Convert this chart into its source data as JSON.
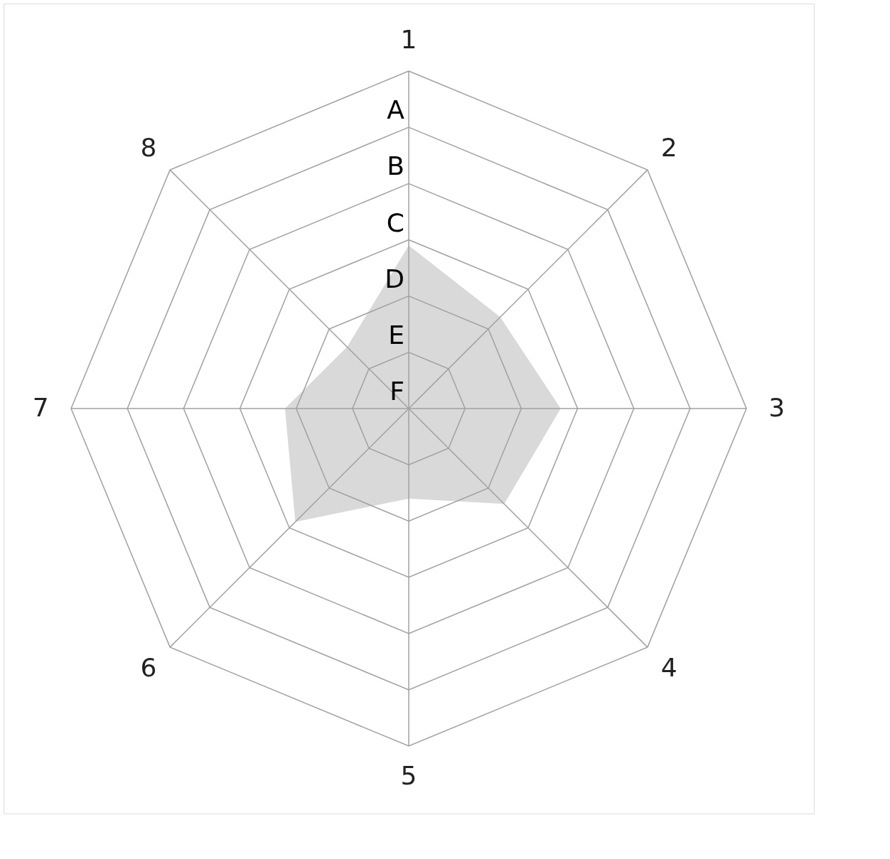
{
  "chart_data": {
    "type": "radar",
    "categories": [
      "1",
      "2",
      "3",
      "4",
      "5",
      "6",
      "7",
      "8"
    ],
    "series": [
      {
        "color": "#d9d9d9",
        "values": [
          2.9,
          2.3,
          2.7,
          2.4,
          1.6,
          2.85,
          2.2,
          1.55
        ]
      }
    ],
    "ylim": [
      0,
      6
    ],
    "yticks": [
      {
        "value": 0,
        "label": "F"
      },
      {
        "value": 1,
        "label": "E"
      },
      {
        "value": 2,
        "label": "D"
      },
      {
        "value": 3,
        "label": "C"
      },
      {
        "value": 4,
        "label": "B"
      },
      {
        "value": 5,
        "label": "A"
      }
    ],
    "grid": true
  }
}
